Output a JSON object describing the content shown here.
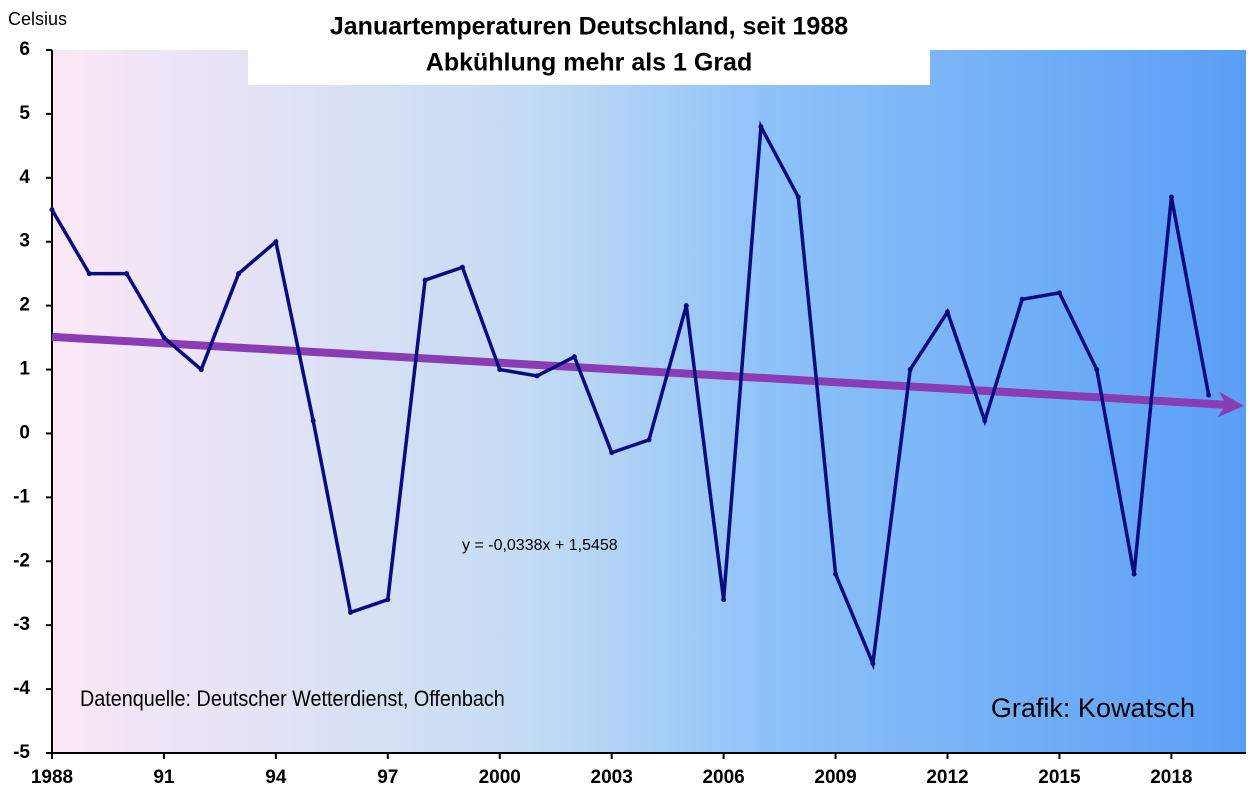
{
  "chart_data": {
    "type": "line",
    "title": "Januartemperaturen Deutschland, seit 1988",
    "subtitle": "Abkühlung mehr als 1 Grad",
    "y_label": "Celsius",
    "source": "Datenquelle: Deutscher Wetterdienst, Offenbach",
    "credit": "Grafik: Kowatsch",
    "x": [
      1988,
      1989,
      1990,
      1991,
      1992,
      1993,
      1994,
      1995,
      1996,
      1997,
      1998,
      1999,
      2000,
      2001,
      2002,
      2003,
      2004,
      2005,
      2006,
      2007,
      2008,
      2009,
      2010,
      2011,
      2012,
      2013,
      2014,
      2015,
      2016,
      2017,
      2018,
      2019
    ],
    "series": [
      {
        "color": "#0b0b80",
        "values": [
          3.5,
          2.5,
          2.5,
          1.5,
          1.0,
          2.5,
          3.0,
          0.2,
          -2.8,
          -2.6,
          2.4,
          2.6,
          1.0,
          0.9,
          1.2,
          -0.3,
          -0.1,
          2.0,
          -2.6,
          4.8,
          3.7,
          -2.2,
          -3.6,
          1.0,
          1.9,
          0.2,
          2.1,
          2.2,
          1.0,
          -2.2,
          3.7,
          0.6
        ]
      }
    ],
    "trend": {
      "slope": -0.0338,
      "intercept": 1.5458,
      "label": "y = -0,0338x + 1,5458",
      "color": "#8a3cb4"
    },
    "xlim": [
      1988,
      2020
    ],
    "ylim": [
      -5,
      6
    ],
    "xticks": [
      1988,
      {
        "value": 1991,
        "label": "91"
      },
      {
        "value": 1994,
        "label": "94"
      },
      {
        "value": 1997,
        "label": "97"
      },
      2000,
      2003,
      2006,
      2009,
      2012,
      2015,
      2018
    ],
    "yticks": [
      -5,
      -4,
      -3,
      -2,
      -1,
      0,
      1,
      2,
      3,
      4,
      5,
      6
    ]
  }
}
